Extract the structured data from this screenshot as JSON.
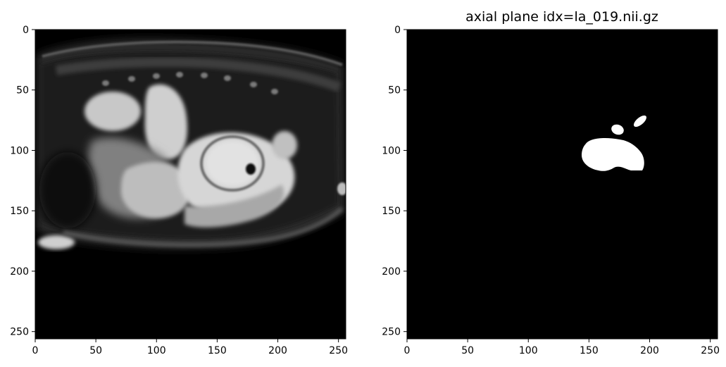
{
  "figure": {
    "title": "axial plane idx=la_019.nii.gz"
  },
  "panels": [
    {
      "name": "mri-slice",
      "xticks": [
        "0",
        "50",
        "100",
        "150",
        "200",
        "250"
      ],
      "yticks": [
        "0",
        "50",
        "100",
        "150",
        "200",
        "250"
      ],
      "tick_values": [
        0,
        50,
        100,
        150,
        200,
        250
      ],
      "range": [
        0,
        256
      ]
    },
    {
      "name": "segmentation-mask",
      "xticks": [
        "0",
        "50",
        "100",
        "150",
        "200",
        "250"
      ],
      "yticks": [
        "0",
        "50",
        "100",
        "150",
        "200",
        "250"
      ],
      "tick_values": [
        0,
        50,
        100,
        150,
        200,
        250
      ],
      "range": [
        0,
        256
      ]
    }
  ],
  "colors": {
    "background": "#000000",
    "mask": "#ffffff",
    "tissue": "#9a9a9a",
    "bright": "#dcdcdc"
  }
}
